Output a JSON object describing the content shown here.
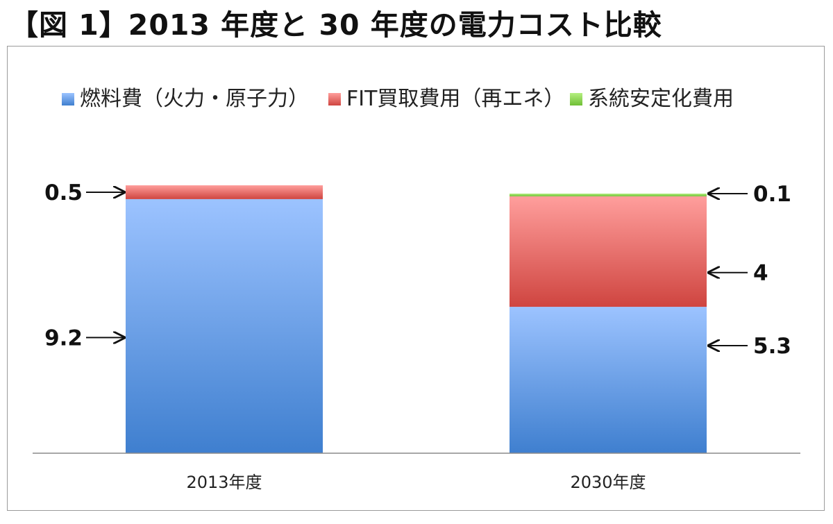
{
  "title": "【図 1】2013 年度と 30 年度の電力コスト比較",
  "chart_data": {
    "type": "bar",
    "stacked": true,
    "categories": [
      "2013年度",
      "2030年度"
    ],
    "series": [
      {
        "name": "燃料費（火力・原子力）",
        "color": "#6a9ee8",
        "values": [
          9.2,
          5.3
        ]
      },
      {
        "name": "FIT買取費用（再エネ）",
        "color": "#e06a67",
        "values": [
          0.5,
          4
        ]
      },
      {
        "name": "系統安定化費用",
        "color": "#8fd14f",
        "values": [
          0,
          0.1
        ]
      }
    ],
    "data_labels": [
      {
        "text": "0.5",
        "category": 0,
        "series": 1
      },
      {
        "text": "9.2",
        "category": 0,
        "series": 0
      },
      {
        "text": "0.1",
        "category": 1,
        "series": 2
      },
      {
        "text": "4",
        "category": 1,
        "series": 1
      },
      {
        "text": "5.3",
        "category": 1,
        "series": 0
      }
    ],
    "ylim": [
      0,
      9.7
    ],
    "legend_position": "top",
    "grid": false
  }
}
